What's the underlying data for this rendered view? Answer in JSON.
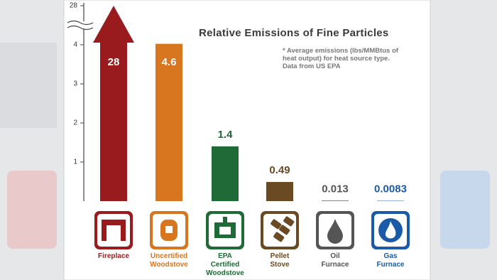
{
  "chart_data": {
    "type": "bar",
    "title": "Relative Emissions of Fine Particles",
    "note": "* Average emissions (lbs/MMBtus of heat output) for heat source type. Data from US EPA",
    "categories": [
      "Fireplace",
      "Uncertified Woodstove",
      "EPA Certified Woodstove",
      "Pellet Stove",
      "Oil Furnace",
      "Gas Furnace"
    ],
    "values": [
      28,
      4.6,
      1.4,
      0.49,
      0.013,
      0.0083
    ],
    "colors": [
      "#9a1b1e",
      "#d8761f",
      "#1f6a36",
      "#6a4a22",
      "#555555",
      "#1a5aa6"
    ],
    "ylim": [
      0,
      28
    ],
    "yticks": [
      1,
      2,
      3,
      4,
      28
    ],
    "y_break": 4
  }
}
